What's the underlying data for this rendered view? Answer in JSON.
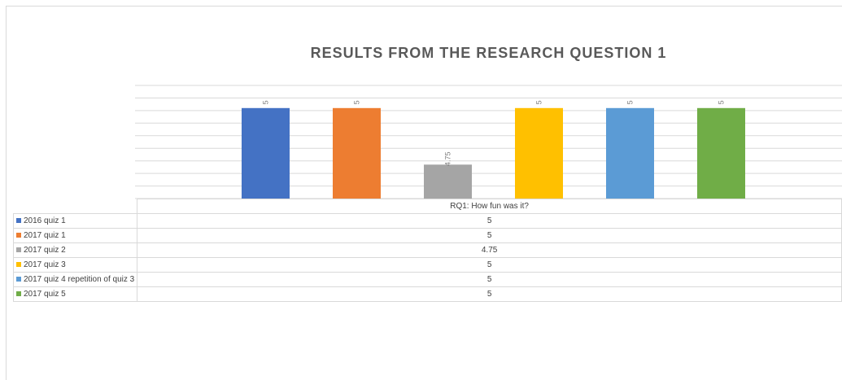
{
  "chart_data": {
    "type": "bar",
    "title": "RESULTS FROM THE RESEARCH QUESTION 1",
    "category": "RQ1: How fun was it?",
    "series": [
      {
        "name": "2016 quiz 1",
        "value": 5,
        "label": "5",
        "color": "#4472C4"
      },
      {
        "name": "2017 quiz 1",
        "value": 5,
        "label": "5",
        "color": "#ED7D31"
      },
      {
        "name": "2017 quiz 2",
        "value": 4.75,
        "label": "4.75",
        "color": "#A5A5A5"
      },
      {
        "name": "2017 quiz 3",
        "value": 5,
        "label": "5",
        "color": "#FFC000"
      },
      {
        "name": "2017 quiz 4 repetition of quiz 3",
        "value": 5,
        "label": "5",
        "color": "#5B9BD5"
      },
      {
        "name": "2017 quiz 5",
        "value": 5,
        "label": "5",
        "color": "#70AD47"
      }
    ],
    "ylim": [
      4.6,
      5.1
    ],
    "grid": true,
    "legend": "data-table"
  }
}
